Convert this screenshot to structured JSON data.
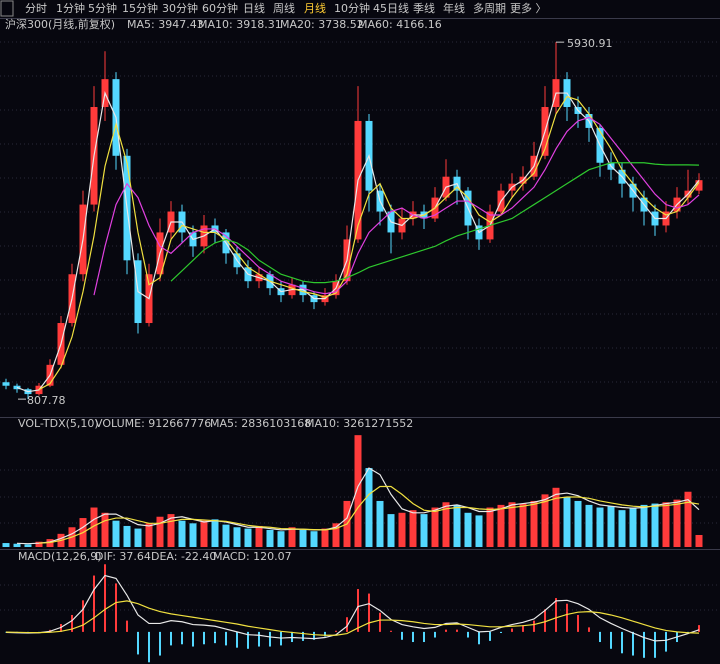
{
  "toolbar": {
    "tabs": [
      "分时",
      "1分钟",
      "5分钟",
      "15分钟",
      "30分钟",
      "60分钟",
      "日线",
      "周线",
      "月线",
      "10分钟",
      "45日线",
      "季线",
      "年线",
      "多周期",
      "更多 〉"
    ]
  },
  "chart_data": [
    {
      "type": "candlestick",
      "title": "沪深300(月线,前复权)",
      "up_color": "#ff3b3b",
      "down_color": "#54d8ff",
      "ylim": [
        580,
        6220
      ],
      "open": [
        1050,
        1000,
        950,
        880,
        1000,
        1300,
        1900,
        2600,
        3600,
        5000,
        5400,
        4300,
        2800,
        1900,
        2600,
        3200,
        3500,
        3200,
        3000,
        3300,
        3200,
        2900,
        2700,
        2500,
        2600,
        2400,
        2300,
        2450,
        2300,
        2200,
        2300,
        2500,
        3100,
        4800,
        3800,
        3500,
        3200,
        3400,
        3500,
        3400,
        3700,
        4000,
        3800,
        3300,
        3100,
        3500,
        3800,
        3900,
        4000,
        4300,
        5000,
        5400,
        5000,
        4900,
        4700,
        4200,
        4100,
        3900,
        3700,
        3500,
        3300,
        3500,
        3700,
        3800
      ],
      "high": [
        1100,
        1030,
        970,
        1040,
        1380,
        2000,
        2750,
        3800,
        5300,
        5800,
        5500,
        4400,
        2900,
        2750,
        3400,
        3650,
        3600,
        3300,
        3450,
        3400,
        3250,
        3000,
        2800,
        2700,
        2650,
        2500,
        2550,
        2500,
        2350,
        2400,
        2600,
        3300,
        5300,
        4900,
        3900,
        3600,
        3550,
        3650,
        3600,
        3850,
        4250,
        4100,
        3850,
        3400,
        3600,
        3900,
        4050,
        4150,
        4500,
        5300,
        5930.91,
        5500,
        5150,
        5000,
        4750,
        4350,
        4200,
        4000,
        3800,
        3600,
        3650,
        3850,
        4100,
        4050
      ],
      "low": [
        950,
        900,
        807.78,
        860,
        980,
        1250,
        1850,
        2500,
        3500,
        4800,
        4100,
        2600,
        1750,
        1850,
        2500,
        3100,
        3050,
        2850,
        2900,
        3050,
        2750,
        2600,
        2400,
        2400,
        2300,
        2200,
        2250,
        2200,
        2100,
        2150,
        2250,
        2450,
        3050,
        3500,
        3300,
        2900,
        3100,
        3300,
        3250,
        3350,
        3650,
        3600,
        3100,
        2950,
        3050,
        3450,
        3700,
        3800,
        3950,
        4250,
        4900,
        4800,
        4700,
        4500,
        4000,
        3950,
        3700,
        3500,
        3300,
        3150,
        3200,
        3400,
        3600,
        3750
      ],
      "close": [
        1000,
        950,
        880,
        1000,
        1300,
        1900,
        2600,
        3600,
        5000,
        5400,
        4300,
        2800,
        1900,
        2600,
        3200,
        3500,
        3200,
        3000,
        3300,
        3200,
        2900,
        2700,
        2500,
        2600,
        2400,
        2300,
        2450,
        2300,
        2200,
        2300,
        2500,
        3100,
        4800,
        3800,
        3500,
        3200,
        3400,
        3500,
        3400,
        3700,
        4000,
        3800,
        3300,
        3100,
        3500,
        3800,
        3900,
        4000,
        4300,
        5000,
        5400,
        5000,
        4900,
        4700,
        4200,
        4100,
        3900,
        3700,
        3500,
        3300,
        3500,
        3700,
        3800,
        3950
      ],
      "series": [
        {
          "name": "MA5: 3947.43",
          "color": "#e8e8e8",
          "values": [
            null,
            975,
            915,
            940,
            1150,
            1600,
            2250,
            3100,
            4300,
            5200,
            4850,
            3550,
            2350,
            2250,
            2900,
            3350,
            3350,
            3100,
            3150,
            3250,
            3050,
            2800,
            2600,
            2550,
            2500,
            2350,
            2380,
            2380,
            2250,
            2250,
            2400,
            2800,
            3950,
            4300,
            3650,
            3350,
            3300,
            3450,
            3450,
            3550,
            3850,
            3900,
            3550,
            3200,
            3300,
            3650,
            3850,
            3950,
            4150,
            4650,
            5200,
            5200,
            4950,
            4800,
            4450,
            4150,
            4000,
            3800,
            3600,
            3400,
            3400,
            3600,
            3750,
            3947.43
          ]
        },
        {
          "name": "MA10: 3918.31",
          "color": "#f0e040",
          "values": [
            null,
            null,
            null,
            945,
            1030,
            1270,
            1700,
            2350,
            3150,
            4150,
            4750,
            4200,
            3200,
            2450,
            2550,
            3100,
            3300,
            3250,
            3200,
            3200,
            3100,
            2900,
            2700,
            2600,
            2500,
            2450,
            2400,
            2350,
            2320,
            2270,
            2330,
            2600,
            3300,
            3750,
            3900,
            3550,
            3400,
            3400,
            3450,
            3550,
            3700,
            3850,
            3700,
            3450,
            3350,
            3450,
            3700,
            3900,
            4050,
            4400,
            4900,
            5150,
            5100,
            4900,
            4650,
            4400,
            4100,
            3900,
            3700,
            3550,
            3450,
            3500,
            3700,
            3918.31
          ]
        },
        {
          "name": "MA20: 3738.52",
          "color": "#e040e0",
          "values": [
            null,
            null,
            null,
            null,
            null,
            null,
            null,
            null,
            2300,
            3000,
            3600,
            3900,
            3700,
            3300,
            3000,
            2900,
            3050,
            3200,
            3250,
            3250,
            3150,
            3000,
            2850,
            2700,
            2600,
            2500,
            2450,
            2400,
            2350,
            2320,
            2350,
            2500,
            2900,
            3200,
            3350,
            3500,
            3550,
            3450,
            3400,
            3450,
            3550,
            3650,
            3650,
            3550,
            3450,
            3450,
            3550,
            3700,
            3850,
            4100,
            4400,
            4650,
            4800,
            4850,
            4750,
            4550,
            4350,
            4150,
            3950,
            3750,
            3600,
            3550,
            3600,
            3738.52
          ]
        },
        {
          "name": "MA60: 4166.16",
          "color": "#2ec82e",
          "values": [
            null,
            null,
            null,
            null,
            null,
            null,
            null,
            null,
            null,
            null,
            null,
            null,
            null,
            null,
            null,
            2500,
            2650,
            2800,
            2950,
            3050,
            3100,
            3050,
            2950,
            2800,
            2700,
            2600,
            2550,
            2500,
            2480,
            2480,
            2500,
            2550,
            2620,
            2700,
            2750,
            2800,
            2850,
            2900,
            2950,
            3000,
            3080,
            3150,
            3200,
            3250,
            3300,
            3350,
            3400,
            3500,
            3600,
            3700,
            3800,
            3900,
            4000,
            4100,
            4150,
            4200,
            4200,
            4200,
            4200,
            4180,
            4170,
            4170,
            4170,
            4166.16
          ]
        }
      ]
    },
    {
      "type": "volume",
      "title": "VOL-TDX(5,10)",
      "ylim": [
        0,
        9500000000.0
      ],
      "volume": {
        "name": "VOLUME: 912667776",
        "values": [
          300000000.0,
          250000000.0,
          200000000.0,
          400000000.0,
          600000000.0,
          1000000000.0,
          1500000000.0,
          2200000000.0,
          3000000000.0,
          2600000000.0,
          2000000000.0,
          1600000000.0,
          1400000000.0,
          1800000000.0,
          2300000000.0,
          2500000000.0,
          2000000000.0,
          1800000000.0,
          2000000000.0,
          2100000000.0,
          1700000000.0,
          1500000000.0,
          1400000000.0,
          1600000000.0,
          1300000000.0,
          1200000000.0,
          1500000000.0,
          1300000000.0,
          1200000000.0,
          1400000000.0,
          1800000000.0,
          3500000000.0,
          8500000000.0,
          6000000000.0,
          3500000000.0,
          2500000000.0,
          2600000000.0,
          2800000000.0,
          2500000000.0,
          3000000000.0,
          3400000000.0,
          3200000000.0,
          2600000000.0,
          2400000000.0,
          3000000000.0,
          3200000000.0,
          3400000000.0,
          3300000000.0,
          3500000000.0,
          4000000000.0,
          4500000000.0,
          3800000000.0,
          3500000000.0,
          3200000000.0,
          3000000000.0,
          3100000000.0,
          2800000000.0,
          3000000000.0,
          3200000000.0,
          3300000000.0,
          3400000000.0,
          3600000000.0,
          4200000000.0,
          912667776
        ]
      },
      "series": [
        {
          "name": "MA5: 2836103168",
          "color": "#e8e8e8",
          "values": [
            null,
            280000000.0,
            250000000.0,
            290000000.0,
            380000000.0,
            650000000.0,
            1000000000.0,
            1500000000.0,
            2100000000.0,
            2500000000.0,
            2500000000.0,
            2100000000.0,
            1700000000.0,
            1600000000.0,
            1800000000.0,
            2200000000.0,
            2300000000.0,
            2100000000.0,
            1900000000.0,
            2000000000.0,
            1900000000.0,
            1700000000.0,
            1500000000.0,
            1500000000.0,
            1400000000.0,
            1300000000.0,
            1350000000.0,
            1350000000.0,
            1300000000.0,
            1300000000.0,
            1500000000.0,
            2200000000.0,
            4600000000.0,
            6000000000.0,
            5500000000.0,
            4000000000.0,
            2900000000.0,
            2600000000.0,
            2600000000.0,
            2800000000.0,
            3100000000.0,
            3200000000.0,
            3000000000.0,
            2700000000.0,
            2700000000.0,
            2900000000.0,
            3200000000.0,
            3300000000.0,
            3400000000.0,
            3600000000.0,
            4000000000.0,
            4100000000.0,
            3900000000.0,
            3500000000.0,
            3200000000.0,
            3100000000.0,
            3000000000.0,
            2950000000.0,
            3000000000.0,
            3150000000.0,
            3300000000.0,
            3400000000.0,
            3600000000.0,
            2836103168
          ]
        },
        {
          "name": "MA10: 3261271552",
          "color": "#f0e040",
          "values": [
            null,
            null,
            null,
            290000000.0,
            340000000.0,
            500000000.0,
            760000000.0,
            1100000000.0,
            1600000000.0,
            2000000000.0,
            2200000000.0,
            2200000000.0,
            2000000000.0,
            1800000000.0,
            1800000000.0,
            1950000000.0,
            2100000000.0,
            2100000000.0,
            2050000000.0,
            2000000000.0,
            1950000000.0,
            1800000000.0,
            1650000000.0,
            1550000000.0,
            1500000000.0,
            1400000000.0,
            1380000000.0,
            1350000000.0,
            1320000000.0,
            1300000000.0,
            1400000000.0,
            1750000000.0,
            3000000000.0,
            4000000000.0,
            4600000000.0,
            4600000000.0,
            4000000000.0,
            3300000000.0,
            2800000000.0,
            2700000000.0,
            2900000000.0,
            3000000000.0,
            3000000000.0,
            2900000000.0,
            2850000000.0,
            2900000000.0,
            3000000000.0,
            3100000000.0,
            3250000000.0,
            3450000000.0,
            3700000000.0,
            3800000000.0,
            3800000000.0,
            3700000000.0,
            3500000000.0,
            3350000000.0,
            3200000000.0,
            3100000000.0,
            3050000000.0,
            3100000000.0,
            3150000000.0,
            3250000000.0,
            3400000000.0,
            3261271552
          ]
        }
      ]
    },
    {
      "type": "macd",
      "title": "MACD(12,26,9)",
      "ylim": [
        -570,
        1400
      ],
      "up_color": "#ff3b3b",
      "down_color": "#54d8ff",
      "series": [
        {
          "name": "DIF: 37.64",
          "color": "#e8e8e8",
          "values": [
            -10,
            -15,
            -20,
            -15,
            10,
            80,
            200,
            400,
            750,
            1000,
            950,
            650,
            300,
            150,
            150,
            200,
            180,
            130,
            120,
            100,
            50,
            0,
            -50,
            -60,
            -90,
            -110,
            -100,
            -110,
            -120,
            -100,
            -50,
            100,
            450,
            500,
            380,
            220,
            130,
            90,
            60,
            80,
            150,
            160,
            80,
            0,
            10,
            80,
            130,
            170,
            230,
            380,
            550,
            560,
            500,
            400,
            250,
            150,
            60,
            -20,
            -100,
            -160,
            -150,
            -90,
            -30,
            37.64
          ]
        },
        {
          "name": "DEA: -22.40",
          "color": "#f0e040",
          "values": [
            -5,
            -8,
            -12,
            -13,
            -8,
            10,
            50,
            120,
            250,
            400,
            520,
            550,
            500,
            420,
            360,
            320,
            290,
            260,
            230,
            200,
            170,
            140,
            100,
            70,
            40,
            10,
            -10,
            -30,
            -50,
            -60,
            -60,
            -30,
            70,
            160,
            210,
            210,
            200,
            180,
            150,
            130,
            130,
            140,
            130,
            110,
            90,
            90,
            100,
            110,
            130,
            180,
            250,
            310,
            350,
            360,
            340,
            300,
            250,
            190,
            130,
            70,
            25,
            0,
            -15,
            -22.4
          ]
        }
      ],
      "macd": {
        "name": "MACD: 120.07",
        "color": "#e040e0",
        "values": [
          -10,
          -14,
          -16,
          -4,
          36,
          140,
          300,
          560,
          1000,
          1200,
          860,
          200,
          -400,
          -540,
          -420,
          -240,
          -220,
          -260,
          -220,
          -200,
          -240,
          -280,
          -300,
          -260,
          -260,
          -240,
          -180,
          -160,
          -140,
          -80,
          20,
          260,
          760,
          680,
          340,
          20,
          -140,
          -180,
          -180,
          -100,
          40,
          40,
          -100,
          -220,
          -160,
          -20,
          60,
          120,
          200,
          400,
          600,
          500,
          300,
          80,
          -180,
          -300,
          -380,
          -420,
          -460,
          -460,
          -350,
          -180,
          -30,
          120.07
        ]
      }
    }
  ]
}
